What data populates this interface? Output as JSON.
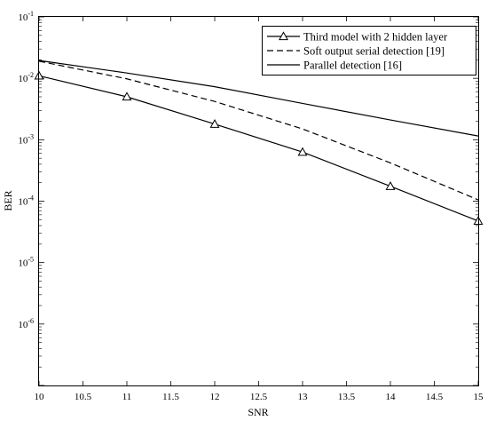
{
  "chart_data": {
    "type": "line",
    "xlabel": "SNR",
    "ylabel": "BER",
    "yscale": "log",
    "xlim": [
      10,
      15
    ],
    "ylim": [
      1e-07,
      0.1
    ],
    "grid": false,
    "legend_position": "top-right",
    "x_ticks": [
      "10",
      "10.5",
      "11",
      "11.5",
      "12",
      "12.5",
      "13",
      "13.5",
      "14",
      "14.5",
      "15"
    ],
    "y_ticks": [
      {
        "base": "10",
        "exp": "-1",
        "value": 0.1
      },
      {
        "base": "10",
        "exp": "-2",
        "value": 0.01
      },
      {
        "base": "10",
        "exp": "-3",
        "value": 0.001
      },
      {
        "base": "10",
        "exp": "-4",
        "value": 0.0001
      },
      {
        "base": "10",
        "exp": "-5",
        "value": 1e-05
      },
      {
        "base": "10",
        "exp": "-6",
        "value": 1e-06
      }
    ],
    "x": [
      10,
      11,
      12,
      13,
      14,
      15
    ],
    "series": [
      {
        "name": "Third model with 2 hidden layer",
        "style": "solid",
        "marker": "triangle",
        "color": "#000000",
        "values": [
          0.011,
          0.005,
          0.0018,
          0.00063,
          0.000175,
          4.75e-05
        ]
      },
      {
        "name": "Soft output serial detection [19]",
        "style": "dashed",
        "marker": "none",
        "color": "#000000",
        "values": [
          0.019,
          0.0098,
          0.0042,
          0.0015,
          0.00042,
          0.000105
        ]
      },
      {
        "name": "Parallel detection [16]",
        "style": "solid",
        "marker": "none",
        "color": "#000000",
        "values": [
          0.0195,
          0.0122,
          0.0073,
          0.0039,
          0.0021,
          0.00115
        ]
      }
    ]
  }
}
